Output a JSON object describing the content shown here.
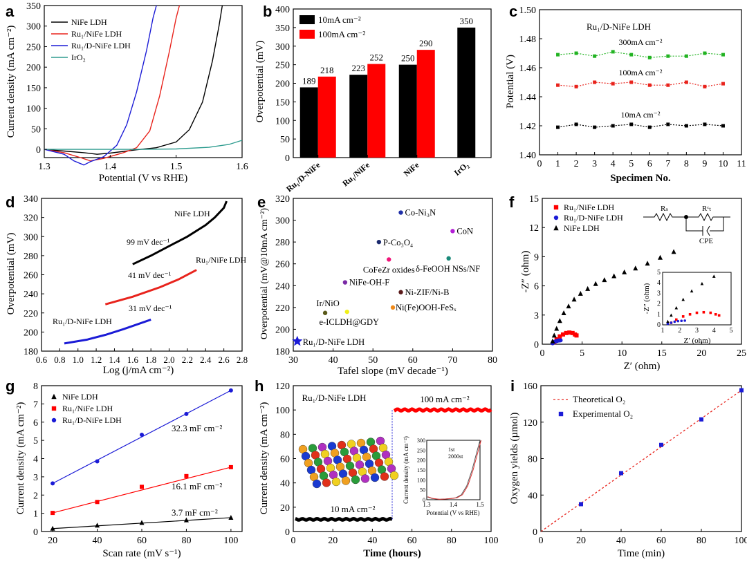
{
  "figure": "Multi-panel electrochemistry figure",
  "chart_data": [
    {
      "panel": "a",
      "type": "line",
      "xlabel": "Potential (V vs RHE)",
      "ylabel": "Current density (mA cm⁻²)",
      "xlim": [
        1.3,
        1.6
      ],
      "ylim": [
        -20,
        350
      ],
      "xticks": [
        "1.3",
        "1.4",
        "1.5",
        "1.6"
      ],
      "yticks": [
        "0",
        "50",
        "100",
        "150",
        "200",
        "250",
        "300",
        "350"
      ],
      "legend": "top-left",
      "series": [
        {
          "name": "NiFe LDH",
          "color": "#000000",
          "x": [
            1.3,
            1.33,
            1.36,
            1.38,
            1.4,
            1.44,
            1.47,
            1.5,
            1.52,
            1.54,
            1.555,
            1.565,
            1.57
          ],
          "y": [
            0,
            -4,
            -8,
            -12,
            -9,
            -1,
            4,
            18,
            48,
            115,
            215,
            300,
            350
          ]
        },
        {
          "name": "Ru₁/NiFe LDH",
          "color": "#e8231c",
          "x": [
            1.3,
            1.33,
            1.355,
            1.37,
            1.39,
            1.42,
            1.44,
            1.46,
            1.475,
            1.49,
            1.5,
            1.505
          ],
          "y": [
            0,
            -8,
            -20,
            -28,
            -22,
            -8,
            4,
            45,
            130,
            240,
            320,
            350
          ]
        },
        {
          "name": "Ru₁/D-NiFe LDH",
          "color": "#1b1bd6",
          "x": [
            1.3,
            1.33,
            1.345,
            1.36,
            1.37,
            1.39,
            1.41,
            1.425,
            1.44,
            1.455,
            1.465,
            1.47
          ],
          "y": [
            0,
            -12,
            -28,
            -38,
            -30,
            -18,
            10,
            60,
            140,
            240,
            320,
            350
          ]
        },
        {
          "name": "IrO₂",
          "color": "#2e9c8f",
          "x": [
            1.3,
            1.4,
            1.45,
            1.5,
            1.55,
            1.58,
            1.6
          ],
          "y": [
            0,
            0,
            0,
            1,
            5,
            12,
            22
          ]
        }
      ]
    },
    {
      "panel": "b",
      "type": "bar",
      "ylabel": "Overpotential (mV)",
      "ylim": [
        0,
        400
      ],
      "yticks": [
        "0",
        "50",
        "100",
        "150",
        "200",
        "250",
        "300",
        "350",
        "400"
      ],
      "categories": [
        "Ru₁/D-NiFe",
        "Ru₁/NiFe",
        "NiFe",
        "IrO₂"
      ],
      "legend": "top-left",
      "series": [
        {
          "name": "10mA cm⁻²",
          "color": "#000000",
          "values": [
            189,
            223,
            250,
            350
          ]
        },
        {
          "name": "100mA cm⁻²",
          "color": "#ff0000",
          "values": [
            218,
            252,
            290,
            null
          ]
        }
      ],
      "value_labels": [
        "189",
        "218",
        "223",
        "252",
        "250",
        "290",
        "350"
      ]
    },
    {
      "panel": "c",
      "type": "line",
      "title": "Ru₁/D-NiFe LDH",
      "xlabel": "Specimen No.",
      "ylabel": "Potential (V)",
      "xlim": [
        0,
        11
      ],
      "ylim": [
        1.4,
        1.5
      ],
      "xticks": [
        "0",
        "1",
        "2",
        "3",
        "4",
        "5",
        "6",
        "7",
        "8",
        "9",
        "10",
        "11"
      ],
      "yticks": [
        "1.40",
        "1.42",
        "1.44",
        "1.46",
        "1.48",
        "1.50"
      ],
      "x": [
        1,
        2,
        3,
        4,
        5,
        6,
        7,
        8,
        9,
        10
      ],
      "series": [
        {
          "name": "300mA cm⁻²",
          "color": "#22b322",
          "values": [
            1.469,
            1.47,
            1.468,
            1.471,
            1.469,
            1.467,
            1.468,
            1.468,
            1.47,
            1.469
          ]
        },
        {
          "name": "100mA cm⁻²",
          "color": "#e8231c",
          "values": [
            1.448,
            1.447,
            1.45,
            1.449,
            1.45,
            1.448,
            1.448,
            1.45,
            1.447,
            1.449
          ]
        },
        {
          "name": "10mA cm⁻²",
          "color": "#000000",
          "values": [
            1.419,
            1.421,
            1.419,
            1.42,
            1.421,
            1.419,
            1.421,
            1.42,
            1.421,
            1.42
          ]
        }
      ]
    },
    {
      "panel": "d",
      "type": "line",
      "xlabel": "Log (j/mA cm⁻²)",
      "ylabel": "Overpotential (mV)",
      "xlim": [
        0.6,
        2.8
      ],
      "ylim": [
        180,
        340
      ],
      "xticks": [
        "0.6",
        "0.8",
        "1.0",
        "1.2",
        "1.4",
        "1.6",
        "1.8",
        "2.0",
        "2.2",
        "2.4",
        "2.6",
        "2.8"
      ],
      "yticks": [
        "180",
        "200",
        "220",
        "240",
        "260",
        "280",
        "300",
        "320",
        "340"
      ],
      "series": [
        {
          "name": "NiFe LDH",
          "slope_label": "99 mV dec⁻¹",
          "color": "#000000",
          "x": [
            1.6,
            1.8,
            2.0,
            2.2,
            2.4,
            2.5,
            2.6,
            2.63
          ],
          "y": [
            271,
            280,
            290,
            300,
            312,
            320,
            330,
            337
          ]
        },
        {
          "name": "Ru₁/NiFe LDH",
          "slope_label": "41 mV dec⁻¹",
          "color": "#e8231c",
          "x": [
            1.3,
            1.6,
            1.9,
            2.1,
            2.3
          ],
          "y": [
            229,
            237,
            247,
            255,
            265
          ]
        },
        {
          "name": "Ru₁/D-NiFe LDH",
          "slope_label": "31 mV dec⁻¹",
          "color": "#1b1bd6",
          "x": [
            0.85,
            1.1,
            1.3,
            1.5,
            1.8
          ],
          "y": [
            188,
            192,
            197,
            203,
            213
          ]
        }
      ]
    },
    {
      "panel": "e",
      "type": "scatter",
      "xlabel": "Tafel slope (mV decade⁻¹)",
      "ylabel": "Overpotential (mV@10mA cm⁻²)",
      "xlim": [
        30,
        80
      ],
      "ylim": [
        180,
        320
      ],
      "xticks": [
        "30",
        "40",
        "50",
        "60",
        "70",
        "80"
      ],
      "yticks": [
        "180",
        "190",
        "200",
        "210",
        "220",
        "230",
        "240",
        "250",
        "260",
        "270",
        "280",
        "290",
        "300",
        "310",
        "320"
      ],
      "points": [
        {
          "label": "Co-Ni₃N",
          "x": 57,
          "y": 307,
          "color": "#1f2fa8"
        },
        {
          "label": "CoN",
          "x": 70,
          "y": 290,
          "color": "#b31fd6"
        },
        {
          "label": "P-Co₃O₄",
          "x": 51.5,
          "y": 280,
          "color": "#1b2a6e"
        },
        {
          "label": "CoFeZr oxides",
          "x": 54,
          "y": 264,
          "color": "#f0167a"
        },
        {
          "label": "δ-FeOOH NSs/NF",
          "x": 69,
          "y": 265,
          "color": "#1a8a7a"
        },
        {
          "label": "NiFe-OH-F",
          "x": 43,
          "y": 243,
          "color": "#7a2aa6"
        },
        {
          "label": "Ni-ZIF/Ni-B",
          "x": 57,
          "y": 234,
          "color": "#5a1a1a"
        },
        {
          "label": "Ni(Fe)OOH-FeSₓ",
          "x": 55,
          "y": 220,
          "color": "#f08a1a"
        },
        {
          "label": "Ir/NiO",
          "x": 38,
          "y": 215,
          "color": "#5a5a1a"
        },
        {
          "label": "e-ICLDH@GDY",
          "x": 43.5,
          "y": 216,
          "color": "#f0f01a"
        },
        {
          "label": "Ru₁/D-NiFe LDH",
          "x": 31,
          "y": 189,
          "color": "#1b1bd6",
          "marker": "star"
        }
      ]
    },
    {
      "panel": "f",
      "type": "scatter",
      "xlabel": "Z′ (ohm)",
      "ylabel": "-Z″ (ohm)",
      "xlim": [
        0,
        25
      ],
      "ylim": [
        0,
        15
      ],
      "xticks": [
        "0",
        "5",
        "10",
        "15",
        "20",
        "25"
      ],
      "yticks": [
        "0",
        "3",
        "6",
        "9",
        "12",
        "15"
      ],
      "circuit_labels": {
        "rs": "Rₛ",
        "rct": "Rᶜₜ",
        "cpe": "CPE"
      },
      "series": [
        {
          "name": "Ru₁/NiFe LDH",
          "color": "#ff0000",
          "marker": "square",
          "x": [
            1.5,
            1.8,
            2.2,
            2.6,
            3.0,
            3.4,
            3.8,
            4.1,
            4.3
          ],
          "y": [
            0.2,
            0.5,
            0.8,
            1.0,
            1.15,
            1.2,
            1.15,
            1.0,
            0.9
          ]
        },
        {
          "name": "Ru₁/D-NiFe LDH",
          "color": "#1b1bd6",
          "marker": "circle",
          "x": [
            1.3,
            1.5,
            1.7,
            1.9,
            2.1,
            2.3
          ],
          "y": [
            0.1,
            0.2,
            0.3,
            0.35,
            0.38,
            0.4
          ]
        },
        {
          "name": "NiFe LDH",
          "color": "#000000",
          "marker": "triangle",
          "x": [
            1.3,
            1.5,
            1.8,
            2.2,
            2.7,
            3.3,
            4.0,
            4.8,
            5.7,
            6.7,
            7.8,
            9.0,
            10.3,
            11.7,
            13.2,
            14.8,
            16.5
          ],
          "y": [
            0.3,
            0.9,
            1.6,
            2.4,
            3.2,
            3.9,
            4.6,
            5.2,
            5.7,
            6.2,
            6.6,
            7.0,
            7.4,
            7.8,
            8.3,
            8.9,
            9.5
          ]
        }
      ],
      "inset": {
        "xlim": [
          1,
          5
        ],
        "ylim": [
          0,
          5
        ],
        "xticks": [
          "1",
          "2",
          "3",
          "4",
          "5"
        ],
        "yticks": [
          "0",
          "1",
          "2",
          "3",
          "4",
          "5"
        ],
        "xlabel": "Z′ (ohm)",
        "ylabel": "-Z″ (ohm)"
      }
    },
    {
      "panel": "g",
      "type": "scatter",
      "xlabel": "Scan rate (mV s⁻¹)",
      "ylabel": "Current density (mA cm⁻²)",
      "xlim": [
        15,
        105
      ],
      "ylim": [
        0,
        8
      ],
      "xticks": [
        "20",
        "40",
        "60",
        "80",
        "100"
      ],
      "yticks": [
        "0",
        "1",
        "2",
        "3",
        "4",
        "5",
        "6",
        "7",
        "8"
      ],
      "x": [
        20,
        40,
        60,
        80,
        100
      ],
      "series": [
        {
          "name": "NiFe LDH",
          "slope_label": "3.7 mF cm⁻²",
          "color": "#000000",
          "marker": "triangle",
          "values": [
            0.16,
            0.33,
            0.48,
            0.62,
            0.76
          ]
        },
        {
          "name": "Ru₁/NiFe LDH",
          "slope_label": "16.1 mF cm⁻²",
          "color": "#ff0000",
          "marker": "square",
          "values": [
            1.02,
            1.62,
            2.45,
            3.04,
            3.53
          ]
        },
        {
          "name": "Ru₁/D-NiFe LDH",
          "slope_label": "32.3 mF cm⁻²",
          "color": "#1b1bd6",
          "marker": "circle",
          "values": [
            2.64,
            3.85,
            5.31,
            6.45,
            7.74
          ]
        }
      ]
    },
    {
      "panel": "h",
      "type": "line",
      "title": "Ru₁/D-NiFe LDH",
      "xlabel": "Time (hours)",
      "ylabel": "Current density (mA cm⁻²)",
      "xlim": [
        0,
        100
      ],
      "ylim": [
        0,
        120
      ],
      "xticks": [
        "0",
        "20",
        "40",
        "60",
        "80",
        "100"
      ],
      "yticks": [
        "0",
        "20",
        "40",
        "60",
        "80",
        "100",
        "120"
      ],
      "segments": [
        {
          "label": "10 mA cm⁻²",
          "x_range": [
            0,
            50
          ],
          "value": 10,
          "color": "#000000"
        },
        {
          "label": "100 mA cm⁻²",
          "x_range": [
            50,
            100
          ],
          "value": 100,
          "color": "#ff0000"
        }
      ],
      "inset": {
        "xlim": [
          1.3,
          1.5
        ],
        "ylim": [
          0,
          300
        ],
        "xticks": [
          "1.3",
          "1.4",
          "1.5"
        ],
        "yticks": [
          "0",
          "50",
          "100",
          "150",
          "200",
          "250",
          "300"
        ],
        "xlabel": "Potential (V vs RHE)",
        "ylabel": "Current density (mA cm⁻²)",
        "legend": [
          "1st",
          "2000st"
        ]
      }
    },
    {
      "panel": "i",
      "type": "line",
      "xlabel": "Time (min)",
      "ylabel": "Oxygen yields (µmol)",
      "xlim": [
        0,
        100
      ],
      "ylim": [
        0,
        160
      ],
      "xticks": [
        "0",
        "20",
        "40",
        "60",
        "80",
        "100"
      ],
      "yticks": [
        "0",
        "40",
        "80",
        "120",
        "160"
      ],
      "series": [
        {
          "name": "Theoretical O₂",
          "color": "#e8231c",
          "style": "dotted",
          "x": [
            0,
            100
          ],
          "y": [
            0,
            155
          ]
        },
        {
          "name": "Experimental O₂",
          "color": "#1b1bd6",
          "marker": "square",
          "x": [
            20,
            40,
            60,
            80,
            100
          ],
          "y": [
            30,
            64,
            95,
            123,
            155
          ]
        }
      ]
    }
  ]
}
